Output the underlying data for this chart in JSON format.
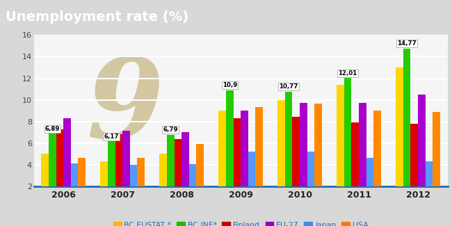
{
  "title": "Unemployment rate (%)",
  "title_bg_color": "#1a6db5",
  "title_text_color": "#ffffff",
  "years": [
    "2006",
    "2007",
    "2008",
    "2009",
    "2010",
    "2011",
    "2012"
  ],
  "series": {
    "BC EUSTAT *": [
      5.0,
      4.3,
      5.05,
      9.0,
      10.0,
      11.4,
      13.0
    ],
    "BC INE*": [
      6.89,
      6.17,
      6.79,
      10.9,
      10.77,
      12.01,
      14.77
    ],
    "Finland": [
      7.3,
      6.85,
      6.4,
      8.3,
      8.45,
      7.9,
      7.8
    ],
    "EU-27": [
      8.3,
      7.15,
      7.05,
      9.0,
      9.75,
      9.7,
      10.5
    ],
    "Japan": [
      4.15,
      4.0,
      4.05,
      5.2,
      5.2,
      4.65,
      4.35
    ],
    "USA": [
      4.65,
      4.65,
      5.9,
      9.35,
      9.65,
      9.0,
      8.9
    ]
  },
  "colors": {
    "BC EUSTAT *": "#FFD700",
    "BC INE*": "#22CC00",
    "Finland": "#DD0000",
    "EU-27": "#AA00CC",
    "Japan": "#5599FF",
    "USA": "#FF8800"
  },
  "legend_colors": {
    "BC EUSTAT *": "#FFB300",
    "BC INE*": "#22BB00",
    "Finland": "#CC0000",
    "EU-27": "#9900BB",
    "Japan": "#4488EE",
    "USA": "#FF7700"
  },
  "annotated_bars": {
    "BC INE*": {
      "2006": "6,89",
      "2007": "6,17",
      "2008": "6,79",
      "2009": "10,9",
      "2010": "10,77",
      "2011": "12,01",
      "2012": "14,77"
    }
  },
  "ylim": [
    2,
    16
  ],
  "yticks": [
    2,
    4,
    6,
    8,
    10,
    12,
    14,
    16
  ],
  "background_color": "#d8d8d8",
  "plot_bg_color": "#f5f5f5",
  "grid_color": "#ffffff",
  "watermark_color": "#c8b888",
  "legend_text_color": "#1a6db5"
}
